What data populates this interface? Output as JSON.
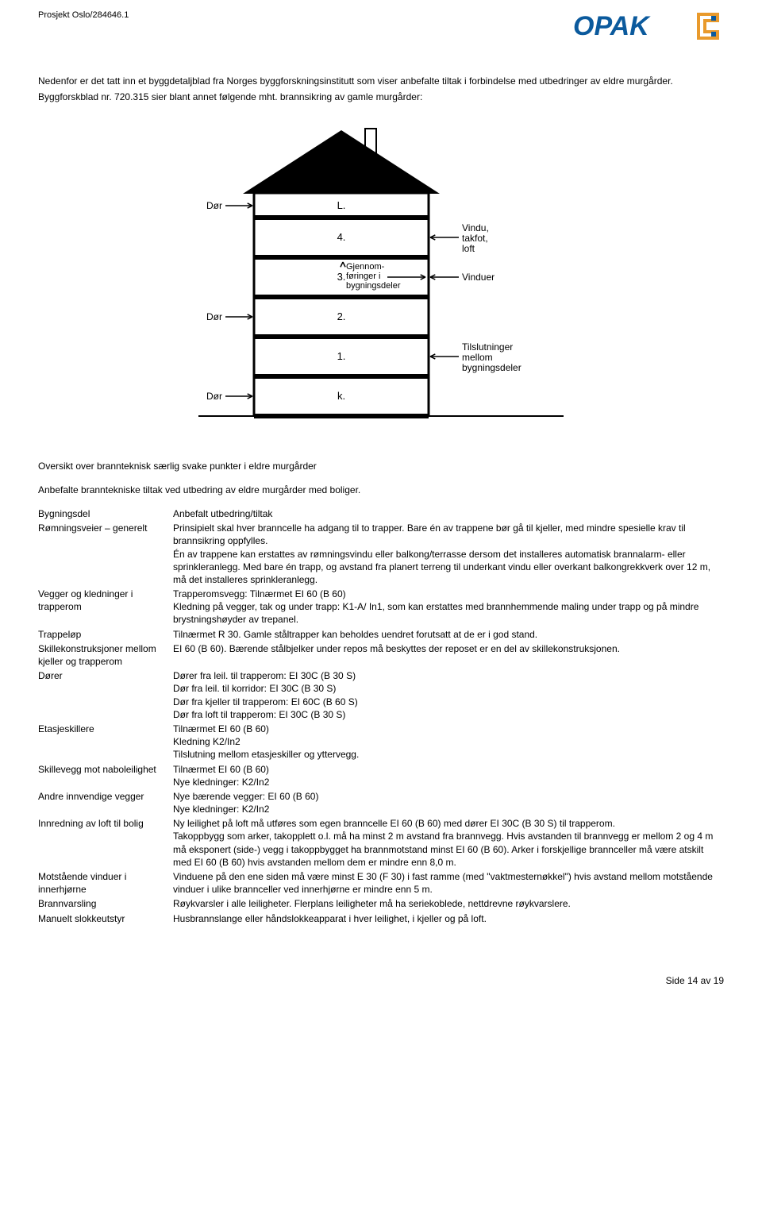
{
  "header": {
    "project": "Prosjekt Oslo/284646.1",
    "logo_text": "OPAK",
    "logo_color": "#0b5a9d",
    "logo_accent": "#e99a2c"
  },
  "intro": {
    "p1": "Nedenfor er det tatt inn et byggdetaljblad fra Norges byggforskningsinstitutt som viser anbefalte tiltak i forbindelse med utbedringer av eldre murgårder.",
    "p2": "Byggforskblad nr. 720.315 sier blant annet følgende mht. brannsikring av gamle murgårder:"
  },
  "diagram": {
    "floors": [
      "L.",
      "4.",
      "3.",
      "2.",
      "1.",
      "k."
    ],
    "left_labels": [
      "Dør",
      "",
      "",
      "Dør",
      "",
      "Dør"
    ],
    "center_labels": [
      "",
      "",
      "Gjennom-\nføringer i\nbygningsdeler",
      "",
      "",
      ""
    ],
    "right_labels": [
      "",
      "Vindu,\ntakfot,\nloft",
      "Vinduer",
      "",
      "Tilslutninger\nmellom\nbygningsdeler",
      ""
    ]
  },
  "caption": "Oversikt over brannteknisk særlig svake punkter i eldre murgårder",
  "subcaption": "Anbefalte branntekniske tiltak ved utbedring av eldre murgårder med boliger.",
  "table": {
    "header_left": "Bygningsdel",
    "header_right": "Anbefalt utbedring/tiltak",
    "rows": [
      {
        "label": "Rømningsveier – generelt",
        "value": "Prinsipielt skal hver branncelle ha adgang til to trapper. Bare én av trappene bør gå til kjeller, med mindre spesielle krav til brannsikring oppfylles.\nÉn av trappene kan erstattes av rømningsvindu eller balkong/terrasse dersom det installeres automatisk brannalarm- eller sprinkleranlegg. Med bare én trapp, og avstand fra planert terreng til underkant vindu eller overkant balkongrekkverk over 12 m, må det installeres sprinkleranlegg."
      },
      {
        "label": "Vegger og kledninger i trapperom",
        "value": "Trapperomsvegg: Tilnærmet EI 60 (B 60)\nKledning på vegger, tak og under trapp: K1-A/ In1, som kan erstattes med brannhemmende maling under trapp og på mindre brystningshøyder av trepanel."
      },
      {
        "label": "Trappeløp",
        "value": "Tilnærmet R 30. Gamle ståltrapper kan beholdes uendret forutsatt at de er i god stand."
      },
      {
        "label": "Skillekonstruksjoner mellom kjeller og trapperom",
        "value": "EI 60 (B 60). Bærende stålbjelker under repos må beskyttes der reposet er en del av skillekonstruksjonen."
      },
      {
        "label": "Dører",
        "value": "Dører fra leil. til trapperom: EI 30C (B 30 S)\nDør fra leil. til korridor: EI 30C (B 30 S)\nDør fra kjeller til trapperom: EI 60C (B 60 S)\nDør fra loft til trapperom: EI 30C (B 30 S)"
      },
      {
        "label": "Etasjeskillere",
        "value": "Tilnærmet EI 60 (B 60)\nKledning K2/In2\nTilslutning mellom etasjeskiller og yttervegg."
      },
      {
        "label": "Skillevegg mot naboleilighet",
        "value": "Tilnærmet EI 60 (B 60)\nNye kledninger: K2/In2"
      },
      {
        "label": "Andre innvendige vegger",
        "value": "Nye bærende vegger: EI 60 (B 60)\nNye kledninger: K2/In2"
      },
      {
        "label": "Innredning av loft til bolig",
        "value": "Ny leilighet på loft må utføres som egen branncelle EI 60 (B 60) med dører EI 30C (B 30 S) til trapperom.\nTakoppbygg som arker, takopplett o.l. må ha minst 2 m avstand fra brannvegg. Hvis avstanden til brannvegg er mellom 2 og 4 m må eksponert (side-) vegg i takoppbygget ha brannmotstand minst EI 60 (B 60). Arker i forskjellige brannceller må være atskilt med EI 60 (B 60) hvis avstanden mellom dem er mindre enn 8,0 m."
      },
      {
        "label": "Motstående vinduer i innerhjørne",
        "value": "Vinduene på den ene siden må være minst E 30 (F 30) i fast ramme (med \"vaktmesternøkkel\") hvis avstand mellom motstående vinduer i ulike brannceller ved innerhjørne er mindre enn 5 m."
      },
      {
        "label": "Brannvarsling",
        "value": "Røykvarsler i alle leiligheter. Flerplans leiligheter må ha seriekoblede, nettdrevne røykvarslere."
      },
      {
        "label": "Manuelt slokkeutstyr",
        "value": "Husbrannslange eller håndslokkeapparat i hver leilighet, i kjeller og på loft."
      }
    ]
  },
  "footer": "Side 14 av 19"
}
